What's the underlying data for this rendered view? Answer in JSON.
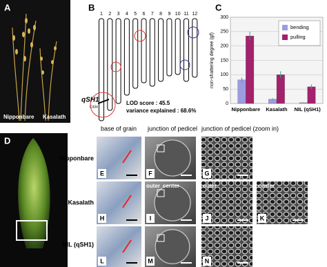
{
  "figure": {
    "panel_a": {
      "letter": "A",
      "labels": [
        "Nipponbare",
        "Kasalath"
      ]
    },
    "panel_b": {
      "letter": "B",
      "chromosomes": [
        "1",
        "2",
        "3",
        "4",
        "5",
        "6",
        "7",
        "8",
        "9",
        "10",
        "11",
        "12"
      ],
      "locus": "qSH1",
      "marker": "C434",
      "lod": "LOD score : 45.5",
      "variance": "variance explained : 68.6%"
    },
    "panel_c": {
      "letter": "C"
    },
    "panel_d": {
      "letter": "D"
    },
    "headers": [
      "base of grain",
      "junction of pedicel",
      "junction of pedicel (zoom in)"
    ],
    "rows": [
      "Nipponbare",
      "Kasalath",
      "NIL (qSH1)"
    ],
    "images": [
      "E",
      "F",
      "G",
      "H",
      "I",
      "J",
      "K",
      "L",
      "M",
      "N"
    ],
    "sublabels": [
      "outer",
      "center",
      "outer",
      "center"
    ]
  },
  "chart_data": {
    "type": "bar",
    "ylabel": "non-shattering degree (gf)",
    "categories": [
      "Nipponbare",
      "Kasalath",
      "NIL (qSH1)"
    ],
    "series": [
      {
        "name": "bending",
        "color": "#9c9ce0",
        "values": [
          82,
          15,
          3
        ],
        "errors": [
          8,
          3,
          1
        ]
      },
      {
        "name": "pulling",
        "color": "#a3226c",
        "values": [
          235,
          100,
          58
        ],
        "errors": [
          15,
          12,
          8
        ]
      }
    ],
    "ylim": [
      0,
      300
    ],
    "yticks": [
      0,
      50,
      100,
      150,
      200,
      250,
      300
    ],
    "grid": true,
    "legend": "upper right"
  }
}
